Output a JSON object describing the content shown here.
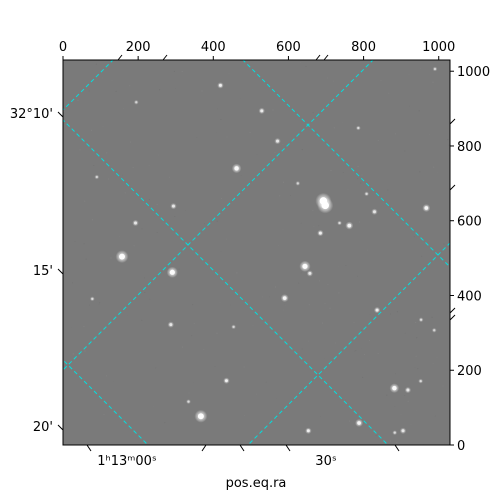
{
  "chart_data": {
    "type": "scatter",
    "description": "Astronomical image (grayscale star field) with a rotated equatorial coordinate grid overlay",
    "background_color": "#7a7a7a",
    "grid_color": "#00e0e0",
    "grid_style": "dashed",
    "pixel_axes": {
      "top": {
        "ticks": [
          "0",
          "200",
          "400",
          "600",
          "800",
          "1000"
        ],
        "values": [
          0,
          200,
          400,
          600,
          800,
          1000
        ],
        "xlim": [
          0,
          1030
        ]
      },
      "right": {
        "ticks": [
          "0",
          "200",
          "400",
          "600",
          "800",
          "1000"
        ],
        "values": [
          0,
          200,
          400,
          600,
          800,
          1000
        ],
        "ylim": [
          0,
          1030
        ]
      }
    },
    "world_axes": {
      "xlabel": "pos.eq.ra",
      "ra_ticks": [
        "1ʰ13ᵐ00ˢ",
        "30ˢ"
      ],
      "dec_ticks": [
        "32°10'",
        "15'",
        "20'"
      ]
    },
    "stars": [
      {
        "x": 693,
        "y": 653,
        "brightness": 1.0,
        "size": 5
      },
      {
        "x": 698,
        "y": 641,
        "brightness": 1.0,
        "size": 5
      },
      {
        "x": 157,
        "y": 504,
        "brightness": 0.95,
        "size": 4
      },
      {
        "x": 291,
        "y": 462,
        "brightness": 0.95,
        "size": 3.5
      },
      {
        "x": 644,
        "y": 478,
        "brightness": 0.95,
        "size": 3.5
      },
      {
        "x": 462,
        "y": 740,
        "brightness": 0.9,
        "size": 3
      },
      {
        "x": 367,
        "y": 77,
        "brightness": 0.95,
        "size": 4
      },
      {
        "x": 435,
        "y": 172,
        "brightness": 0.8,
        "size": 2
      },
      {
        "x": 590,
        "y": 393,
        "brightness": 0.85,
        "size": 2.5
      },
      {
        "x": 685,
        "y": 567,
        "brightness": 0.8,
        "size": 2
      },
      {
        "x": 762,
        "y": 587,
        "brightness": 0.85,
        "size": 2.5
      },
      {
        "x": 829,
        "y": 624,
        "brightness": 0.7,
        "size": 2
      },
      {
        "x": 967,
        "y": 634,
        "brightness": 0.85,
        "size": 2.5
      },
      {
        "x": 287,
        "y": 322,
        "brightness": 0.7,
        "size": 2
      },
      {
        "x": 836,
        "y": 361,
        "brightness": 0.75,
        "size": 2
      },
      {
        "x": 657,
        "y": 459,
        "brightness": 0.7,
        "size": 2
      },
      {
        "x": 882,
        "y": 152,
        "brightness": 0.9,
        "size": 3
      },
      {
        "x": 918,
        "y": 147,
        "brightness": 0.7,
        "size": 2
      },
      {
        "x": 788,
        "y": 59,
        "brightness": 0.85,
        "size": 2.5
      },
      {
        "x": 653,
        "y": 38,
        "brightness": 0.8,
        "size": 2
      },
      {
        "x": 905,
        "y": 38,
        "brightness": 0.7,
        "size": 2
      },
      {
        "x": 294,
        "y": 639,
        "brightness": 0.7,
        "size": 2
      },
      {
        "x": 529,
        "y": 894,
        "brightness": 0.75,
        "size": 2
      },
      {
        "x": 419,
        "y": 962,
        "brightness": 0.8,
        "size": 2
      },
      {
        "x": 193,
        "y": 594,
        "brightness": 0.7,
        "size": 2
      },
      {
        "x": 78,
        "y": 391,
        "brightness": 0.6,
        "size": 1.5
      },
      {
        "x": 953,
        "y": 335,
        "brightness": 0.6,
        "size": 1.5
      },
      {
        "x": 571,
        "y": 813,
        "brightness": 0.7,
        "size": 2
      },
      {
        "x": 952,
        "y": 171,
        "brightness": 0.6,
        "size": 1.5
      },
      {
        "x": 334,
        "y": 116,
        "brightness": 0.6,
        "size": 1.5
      },
      {
        "x": 786,
        "y": 848,
        "brightness": 0.6,
        "size": 1.5
      },
      {
        "x": 808,
        "y": 672,
        "brightness": 0.6,
        "size": 1.5
      },
      {
        "x": 736,
        "y": 594,
        "brightness": 0.6,
        "size": 1.5
      },
      {
        "x": 90,
        "y": 717,
        "brightness": 0.55,
        "size": 1.5
      },
      {
        "x": 195,
        "y": 917,
        "brightness": 0.55,
        "size": 1.5
      },
      {
        "x": 454,
        "y": 316,
        "brightness": 0.55,
        "size": 1.5
      },
      {
        "x": 625,
        "y": 700,
        "brightness": 0.55,
        "size": 1.5
      },
      {
        "x": 990,
        "y": 1006,
        "brightness": 0.55,
        "size": 1.5
      },
      {
        "x": 883,
        "y": 33,
        "brightness": 0.6,
        "size": 1.5
      },
      {
        "x": 988,
        "y": 307,
        "brightness": 0.55,
        "size": 1.5
      }
    ]
  }
}
